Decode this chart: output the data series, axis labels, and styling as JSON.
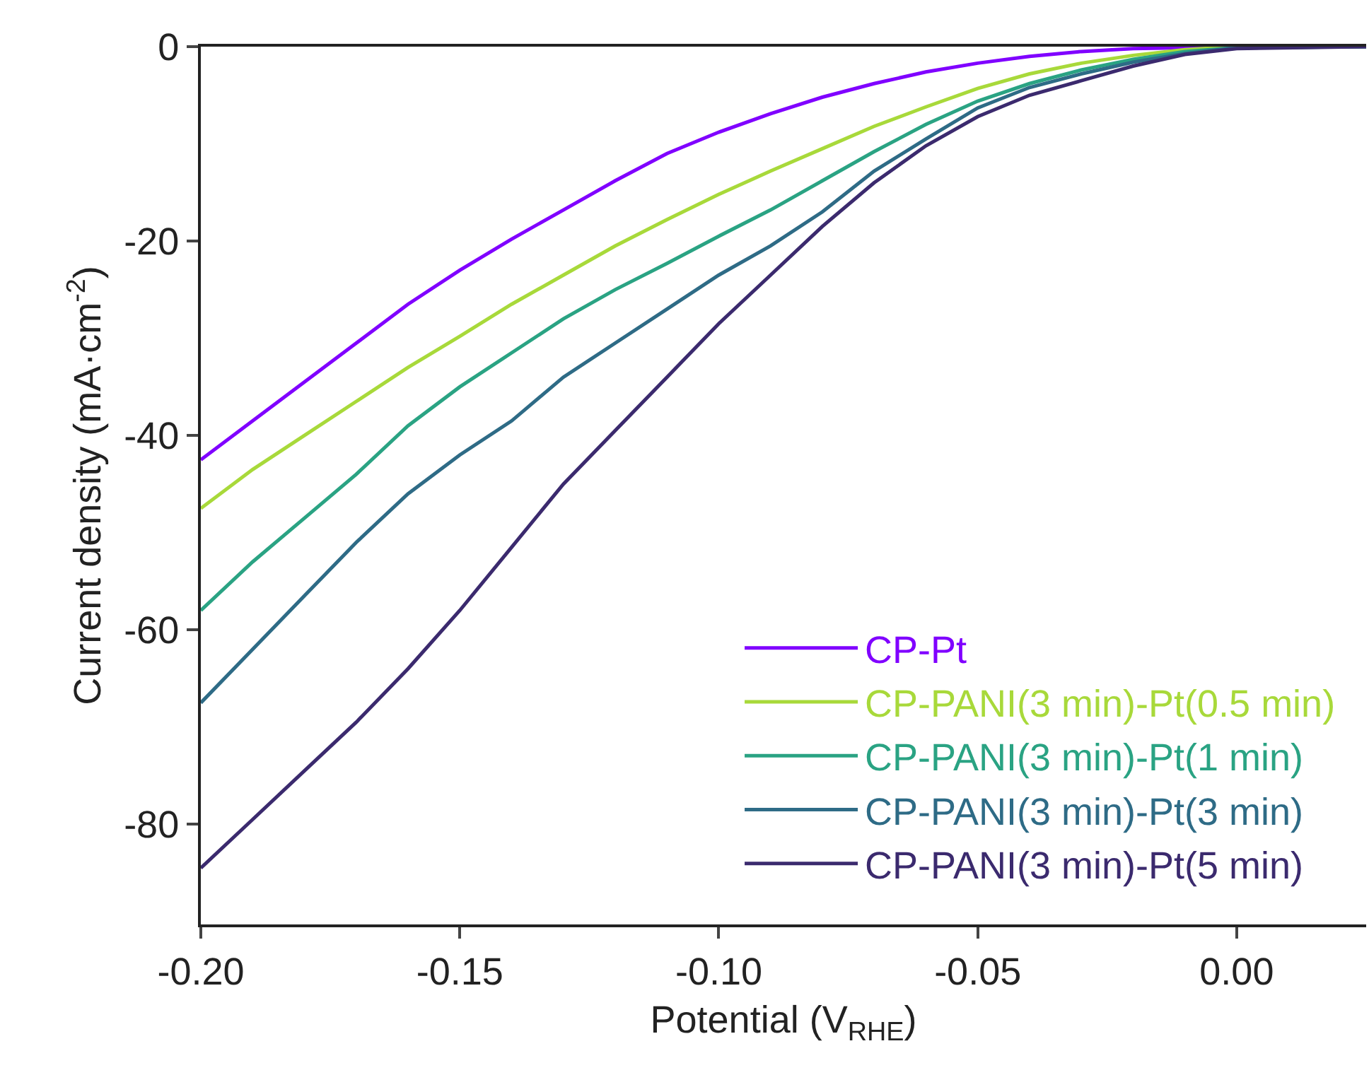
{
  "chart_data": {
    "type": "line",
    "xlabel": "Potential (V$_{RHE}$)",
    "ylabel": "Current density (mA·cm$^{-2}$)",
    "x": [
      -0.2,
      -0.19,
      -0.18,
      -0.17,
      -0.16,
      -0.15,
      -0.14,
      -0.13,
      -0.12,
      -0.11,
      -0.1,
      -0.09,
      -0.08,
      -0.07,
      -0.06,
      -0.05,
      -0.04,
      -0.03,
      -0.02,
      -0.01,
      0.0,
      0.025
    ],
    "series": [
      {
        "name": "CP-Pt",
        "color": "#8000ff",
        "values": [
          -42.5,
          -38.5,
          -34.5,
          -30.5,
          -26.5,
          -23,
          -19.8,
          -16.8,
          -13.8,
          -11,
          -8.8,
          -6.9,
          -5.2,
          -3.8,
          -2.6,
          -1.7,
          -1,
          -0.5,
          -0.2,
          -0.1,
          0,
          0
        ]
      },
      {
        "name": "CP-PANI(3 min)-Pt(0.5 min)",
        "color": "#a8d93a",
        "values": [
          -47.5,
          -43.5,
          -40,
          -36.5,
          -33,
          -29.8,
          -26.5,
          -23.5,
          -20.5,
          -17.8,
          -15.2,
          -12.8,
          -10.5,
          -8.2,
          -6.2,
          -4.3,
          -2.8,
          -1.7,
          -0.9,
          -0.3,
          0,
          0
        ]
      },
      {
        "name": "CP-PANI(3 min)-Pt(1 min)",
        "color": "#2aa383",
        "values": [
          -58,
          -53,
          -48.5,
          -44,
          -39,
          -35,
          -31.5,
          -28,
          -25,
          -22.3,
          -19.5,
          -16.8,
          -13.8,
          -10.8,
          -8,
          -5.6,
          -3.8,
          -2.4,
          -1.3,
          -0.5,
          -0.1,
          0
        ]
      },
      {
        "name": "CP-PANI(3 min)-Pt(3 min)",
        "color": "#2e6b86",
        "values": [
          -67.5,
          -62,
          -56.5,
          -51,
          -46,
          -42,
          -38.5,
          -34,
          -30.5,
          -27,
          -23.5,
          -20.5,
          -17,
          -12.8,
          -9.5,
          -6.3,
          -4.2,
          -2.8,
          -1.6,
          -0.7,
          -0.1,
          0
        ]
      },
      {
        "name": "CP-PANI(3 min)-Pt(5 min)",
        "color": "#3b2a6e",
        "values": [
          -84.5,
          -79.5,
          -74.5,
          -69.5,
          -64,
          -58,
          -51.5,
          -45,
          -39.5,
          -34,
          -28.5,
          -23.5,
          -18.5,
          -14,
          -10.2,
          -7.2,
          -5,
          -3.5,
          -2,
          -0.8,
          -0.2,
          0
        ]
      }
    ],
    "xlim": [
      -0.2,
      0.025
    ],
    "xticks": [
      {
        "value": -0.2,
        "label": "-0.20"
      },
      -0.15,
      {
        "value": -0.1,
        "label": "-0.10"
      },
      -0.05,
      {
        "value": 0,
        "label": "0.00"
      }
    ],
    "ylim": [
      -90.3,
      0
    ],
    "yticks": [
      -80,
      -60,
      -40,
      -20,
      0
    ],
    "legend": "bottom right",
    "line_style": "solid",
    "marker": "none"
  }
}
